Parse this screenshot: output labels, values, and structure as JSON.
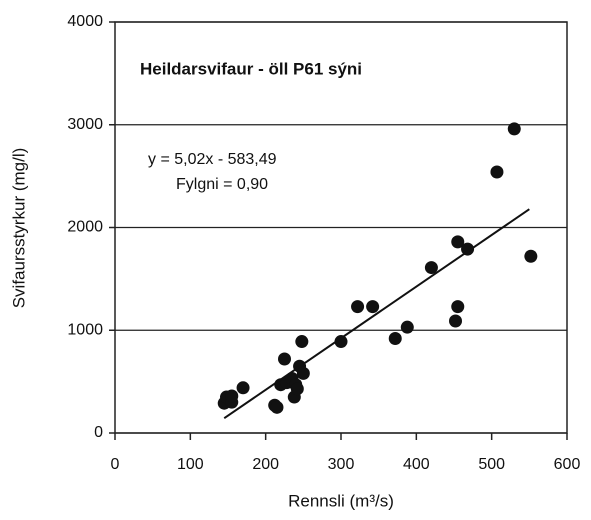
{
  "chart_data": {
    "type": "scatter",
    "title": "Heildarsvifaur - öll P61 sýni",
    "annotations": [
      "y = 5,02x - 583,49",
      "Fylgni = 0,90"
    ],
    "xlabel": "Rennsli (m³/s)",
    "ylabel": "Svifaursstyrkur (mg/l)",
    "xlim": [
      0,
      600
    ],
    "ylim": [
      0,
      4000
    ],
    "xticks": [
      0,
      100,
      200,
      300,
      400,
      500,
      600
    ],
    "yticks": [
      0,
      1000,
      2000,
      3000,
      4000
    ],
    "grid": true,
    "color": "#111111",
    "x": [
      145,
      148,
      155,
      155,
      170,
      212,
      215,
      220,
      225,
      228,
      235,
      238,
      240,
      242,
      245,
      248,
      250,
      300,
      322,
      342,
      372,
      388,
      420,
      452,
      455,
      455,
      468,
      507,
      530,
      552
    ],
    "values": [
      290,
      350,
      300,
      360,
      440,
      270,
      250,
      470,
      720,
      490,
      530,
      350,
      470,
      430,
      650,
      890,
      580,
      890,
      1230,
      1230,
      920,
      1030,
      1610,
      1090,
      1230,
      1860,
      1790,
      2540,
      2960,
      1720
    ],
    "trendline": {
      "x": [
        145,
        550
      ],
      "values": [
        144,
        2178
      ]
    }
  }
}
